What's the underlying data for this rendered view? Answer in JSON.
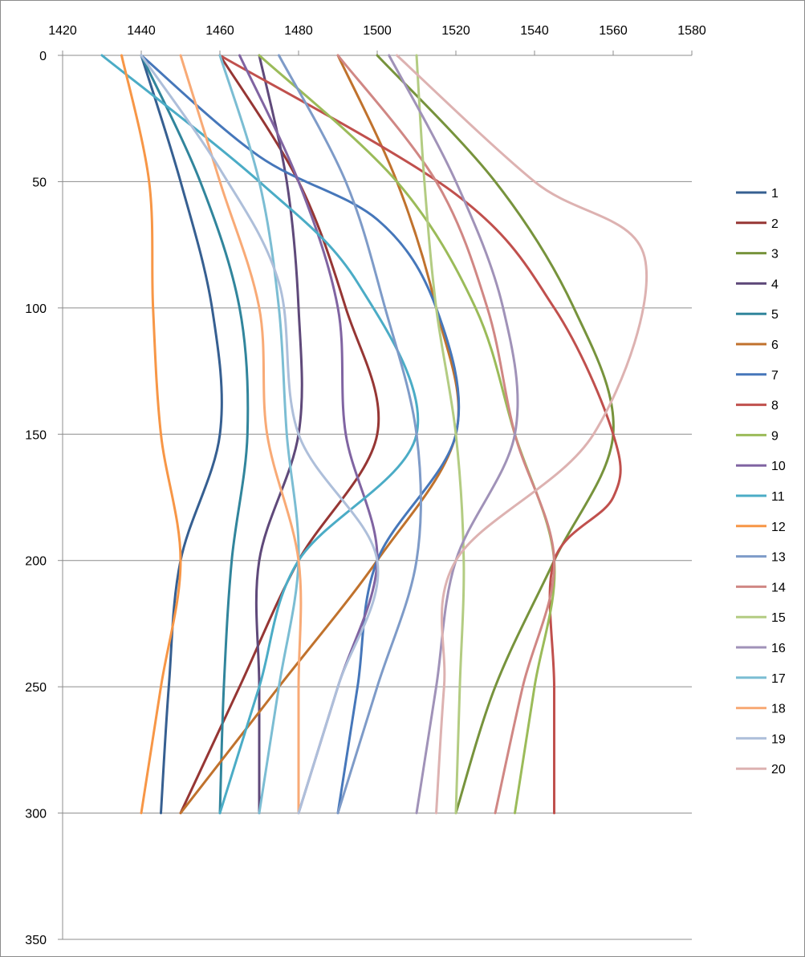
{
  "chart_data": {
    "type": "line",
    "title": "",
    "xlabel": "",
    "ylabel": "",
    "x_axis_position": "top",
    "y_axis_inverted": true,
    "xlim": [
      1420,
      1580
    ],
    "ylim": [
      0,
      350
    ],
    "x_ticks": [
      "1420",
      "1440",
      "1460",
      "1480",
      "1500",
      "1520",
      "1540",
      "1560",
      "1580"
    ],
    "y_ticks": [
      "0",
      "50",
      "100",
      "150",
      "200",
      "250",
      "300",
      "350"
    ],
    "grid": "horizontal",
    "legend_position": "right",
    "smooth": true,
    "series": [
      {
        "name": "1",
        "color": "#365F91",
        "points": [
          [
            1440,
            0
          ],
          [
            1450,
            50
          ],
          [
            1458,
            100
          ],
          [
            1460,
            150
          ],
          [
            1450,
            200
          ],
          [
            1447,
            250
          ],
          [
            1445,
            300
          ]
        ]
      },
      {
        "name": "2",
        "color": "#963634",
        "points": [
          [
            1460,
            0
          ],
          [
            1480,
            50
          ],
          [
            1492,
            100
          ],
          [
            1500,
            150
          ],
          [
            1480,
            200
          ],
          [
            1465,
            250
          ],
          [
            1450,
            300
          ]
        ]
      },
      {
        "name": "3",
        "color": "#77933C",
        "points": [
          [
            1500,
            0
          ],
          [
            1530,
            50
          ],
          [
            1550,
            100
          ],
          [
            1560,
            150
          ],
          [
            1545,
            200
          ],
          [
            1530,
            250
          ],
          [
            1520,
            300
          ]
        ]
      },
      {
        "name": "4",
        "color": "#5F497A",
        "points": [
          [
            1470,
            0
          ],
          [
            1477,
            50
          ],
          [
            1480,
            100
          ],
          [
            1480,
            150
          ],
          [
            1470,
            200
          ],
          [
            1470,
            250
          ],
          [
            1470,
            300
          ]
        ]
      },
      {
        "name": "5",
        "color": "#31859C",
        "points": [
          [
            1440,
            0
          ],
          [
            1455,
            50
          ],
          [
            1465,
            100
          ],
          [
            1467,
            150
          ],
          [
            1463,
            200
          ],
          [
            1461,
            250
          ],
          [
            1460,
            300
          ]
        ]
      },
      {
        "name": "6",
        "color": "#C0722D",
        "points": [
          [
            1490,
            0
          ],
          [
            1505,
            50
          ],
          [
            1515,
            100
          ],
          [
            1520,
            150
          ],
          [
            1500,
            200
          ],
          [
            1475,
            250
          ],
          [
            1450,
            300
          ]
        ]
      },
      {
        "name": "7",
        "color": "#4677BA",
        "points": [
          [
            1440,
            0
          ],
          [
            1470,
            40
          ],
          [
            1500,
            65
          ],
          [
            1515,
            100
          ],
          [
            1520,
            150
          ],
          [
            1500,
            200
          ],
          [
            1495,
            250
          ],
          [
            1490,
            300
          ]
        ]
      },
      {
        "name": "8",
        "color": "#C0504D",
        "points": [
          [
            1460,
            0
          ],
          [
            1520,
            55
          ],
          [
            1545,
            100
          ],
          [
            1560,
            150
          ],
          [
            1560,
            175
          ],
          [
            1545,
            200
          ],
          [
            1545,
            250
          ],
          [
            1545,
            300
          ]
        ]
      },
      {
        "name": "9",
        "color": "#9BBB59",
        "points": [
          [
            1470,
            0
          ],
          [
            1505,
            50
          ],
          [
            1525,
            100
          ],
          [
            1535,
            150
          ],
          [
            1545,
            200
          ],
          [
            1540,
            250
          ],
          [
            1535,
            300
          ]
        ]
      },
      {
        "name": "10",
        "color": "#8064A2",
        "points": [
          [
            1465,
            0
          ],
          [
            1480,
            50
          ],
          [
            1490,
            100
          ],
          [
            1492,
            150
          ],
          [
            1500,
            200
          ],
          [
            1490,
            250
          ],
          [
            1480,
            300
          ]
        ]
      },
      {
        "name": "11",
        "color": "#4BACC6",
        "points": [
          [
            1430,
            0
          ],
          [
            1470,
            50
          ],
          [
            1495,
            90
          ],
          [
            1510,
            150
          ],
          [
            1480,
            200
          ],
          [
            1470,
            250
          ],
          [
            1460,
            300
          ]
        ]
      },
      {
        "name": "12",
        "color": "#F79646",
        "points": [
          [
            1435,
            0
          ],
          [
            1442,
            50
          ],
          [
            1443,
            100
          ],
          [
            1445,
            150
          ],
          [
            1450,
            200
          ],
          [
            1445,
            250
          ],
          [
            1440,
            300
          ]
        ]
      },
      {
        "name": "13",
        "color": "#7E9BC8",
        "points": [
          [
            1475,
            0
          ],
          [
            1492,
            50
          ],
          [
            1502,
            100
          ],
          [
            1510,
            150
          ],
          [
            1510,
            200
          ],
          [
            1500,
            250
          ],
          [
            1490,
            300
          ]
        ]
      },
      {
        "name": "14",
        "color": "#D08784",
        "points": [
          [
            1490,
            0
          ],
          [
            1515,
            50
          ],
          [
            1528,
            100
          ],
          [
            1535,
            150
          ],
          [
            1545,
            200
          ],
          [
            1537,
            250
          ],
          [
            1530,
            300
          ]
        ]
      },
      {
        "name": "15",
        "color": "#B3CC82",
        "points": [
          [
            1510,
            0
          ],
          [
            1512,
            50
          ],
          [
            1515,
            100
          ],
          [
            1520,
            150
          ],
          [
            1522,
            200
          ],
          [
            1521,
            250
          ],
          [
            1520,
            300
          ]
        ]
      },
      {
        "name": "16",
        "color": "#A092B8",
        "points": [
          [
            1503,
            0
          ],
          [
            1520,
            50
          ],
          [
            1532,
            100
          ],
          [
            1535,
            150
          ],
          [
            1520,
            200
          ],
          [
            1515,
            250
          ],
          [
            1510,
            300
          ]
        ]
      },
      {
        "name": "17",
        "color": "#7BBDD3",
        "points": [
          [
            1460,
            0
          ],
          [
            1470,
            50
          ],
          [
            1475,
            100
          ],
          [
            1477,
            150
          ],
          [
            1480,
            200
          ],
          [
            1475,
            250
          ],
          [
            1470,
            300
          ]
        ]
      },
      {
        "name": "18",
        "color": "#F8AA76",
        "points": [
          [
            1450,
            0
          ],
          [
            1460,
            50
          ],
          [
            1470,
            100
          ],
          [
            1472,
            150
          ],
          [
            1480,
            200
          ],
          [
            1480,
            250
          ],
          [
            1480,
            300
          ]
        ]
      },
      {
        "name": "19",
        "color": "#AEBFDA",
        "points": [
          [
            1440,
            0
          ],
          [
            1460,
            45
          ],
          [
            1475,
            90
          ],
          [
            1480,
            150
          ],
          [
            1500,
            200
          ],
          [
            1490,
            250
          ],
          [
            1480,
            300
          ]
        ]
      },
      {
        "name": "20",
        "color": "#DDB2B1",
        "points": [
          [
            1505,
            0
          ],
          [
            1540,
            50
          ],
          [
            1568,
            80
          ],
          [
            1555,
            150
          ],
          [
            1520,
            200
          ],
          [
            1517,
            250
          ],
          [
            1515,
            300
          ]
        ]
      }
    ]
  }
}
